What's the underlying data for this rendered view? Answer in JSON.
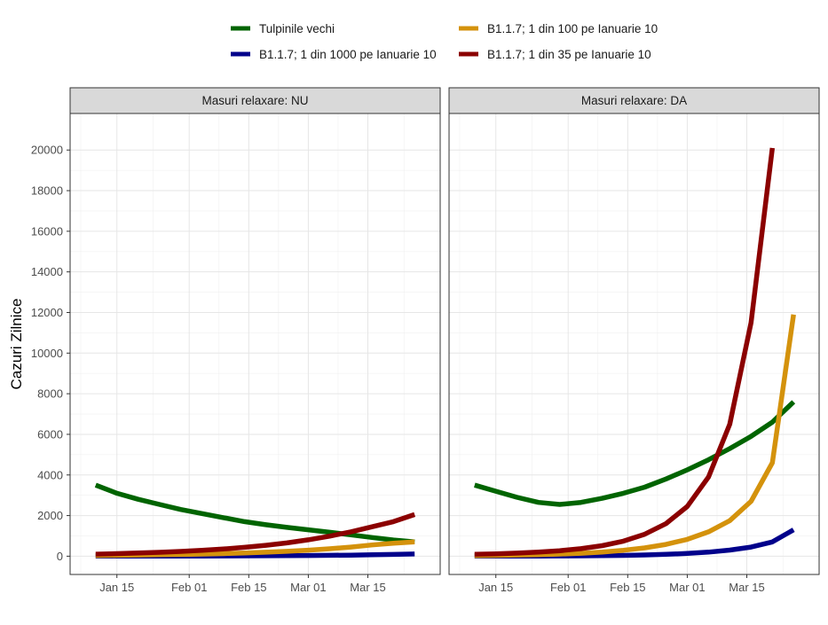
{
  "chart_data": {
    "type": "line",
    "ylabel": "Cazuri Zilnice",
    "xlabel": "",
    "ylim": [
      -900,
      21800
    ],
    "yticks": [
      0,
      2000,
      4000,
      6000,
      8000,
      10000,
      12000,
      14000,
      16000,
      18000,
      20000
    ],
    "x_tick_labels": [
      "Jan 15",
      "Feb 01",
      "Feb 15",
      "Mar 01",
      "Mar 15"
    ],
    "x_tick_dates": [
      "2021-01-15",
      "2021-02-01",
      "2021-02-15",
      "2021-03-01",
      "2021-03-15"
    ],
    "xlim": [
      "2021-01-04",
      "2021-04-01"
    ],
    "grid": true,
    "legend_position": "top",
    "x_dates": [
      "2021-01-10",
      "2021-01-15",
      "2021-01-20",
      "2021-01-25",
      "2021-01-30",
      "2021-02-04",
      "2021-02-09",
      "2021-02-14",
      "2021-02-19",
      "2021-02-24",
      "2021-03-01",
      "2021-03-06",
      "2021-03-11",
      "2021-03-16",
      "2021-03-21",
      "2021-03-26"
    ],
    "legend": [
      {
        "name": "Tulpinile vechi",
        "color": "#006400"
      },
      {
        "name": "B1.1.7; 1 din 100 pe Ianuarie 10",
        "color": "#D4920C"
      },
      {
        "name": "B1.1.7; 1 din 1000 pe Ianuarie 10",
        "color": "#00008B"
      },
      {
        "name": "B1.1.7; 1 din 35 pe Ianuarie 10",
        "color": "#8B0000"
      }
    ],
    "panels": [
      {
        "title": "Masuri relaxare: NU",
        "series": [
          {
            "name": "Tulpinile vechi",
            "color": "#006400",
            "values": [
              3500,
              3100,
              2800,
              2550,
              2300,
              2100,
              1900,
              1700,
              1550,
              1420,
              1300,
              1180,
              1050,
              920,
              800,
              700
            ]
          },
          {
            "name": "B1.1.7; 1 din 1000 pe Ianuarie 10",
            "color": "#00008B",
            "values": [
              3,
              4,
              5,
              6,
              8,
              10,
              13,
              16,
              20,
              26,
              33,
              42,
              53,
              68,
              86,
              110
            ]
          },
          {
            "name": "B1.1.7; 1 din 100 pe Ianuarie 10",
            "color": "#D4920C",
            "values": [
              35,
              44,
              55,
              68,
              84,
              104,
              128,
              158,
              195,
              240,
              296,
              365,
              450,
              555,
              635,
              700
            ]
          },
          {
            "name": "B1.1.7; 1 din 35 pe Ianuarie 10",
            "color": "#8B0000",
            "values": [
              100,
              125,
              155,
              190,
              235,
              290,
              355,
              435,
              535,
              655,
              805,
              985,
              1200,
              1450,
              1700,
              2050
            ]
          }
        ]
      },
      {
        "title": "Masuri relaxare: DA",
        "series": [
          {
            "name": "Tulpinile vechi",
            "color": "#006400",
            "values": [
              3500,
              3200,
              2900,
              2650,
              2550,
              2650,
              2850,
              3100,
              3400,
              3800,
              4250,
              4750,
              5300,
              5900,
              6600,
              7600
            ]
          },
          {
            "name": "B1.1.7; 1 din 1000 pe Ianuarie 10",
            "color": "#00008B",
            "values": [
              3,
              4,
              5,
              8,
              12,
              18,
              27,
              40,
              60,
              90,
              135,
              200,
              300,
              450,
              700,
              1300
            ]
          },
          {
            "name": "B1.1.7; 1 din 100 pe Ianuarie 10",
            "color": "#D4920C",
            "values": [
              30,
              40,
              55,
              75,
              105,
              145,
              205,
              290,
              410,
              580,
              830,
              1200,
              1750,
              2700,
              4600,
              11900
            ]
          },
          {
            "name": "B1.1.7; 1 din 35 pe Ianuarie 10",
            "color": "#8B0000",
            "values": [
              90,
              115,
              150,
              200,
              270,
              370,
              520,
              740,
              1080,
              1600,
              2450,
              3900,
              6500,
              11500,
              20100,
              null
            ]
          }
        ]
      }
    ]
  }
}
